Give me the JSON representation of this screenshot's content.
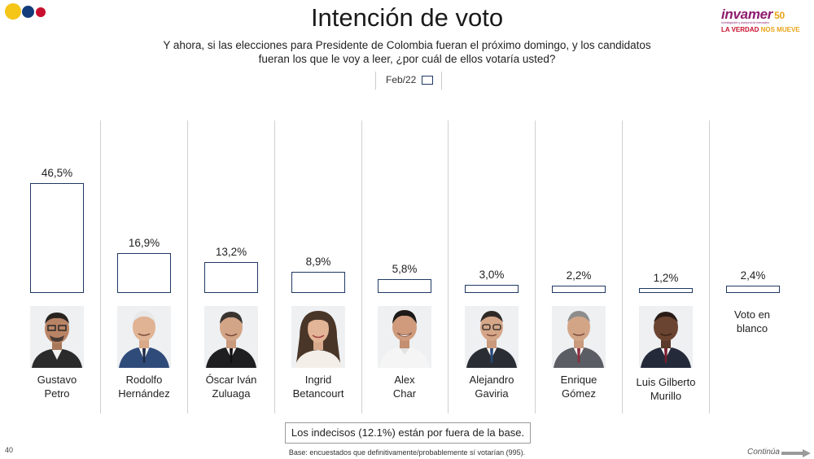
{
  "title": "Intención de voto",
  "question": "Y ahora, si las elecciones para Presidente de Colombia fueran el próximo domingo, y los candidatos fueran los que le voy a leer, ¿por cuál de ellos votaría usted?",
  "legend": {
    "label": "Feb/22"
  },
  "logo": {
    "brand": "invamer",
    "fifty": "50",
    "subtitle": "Investigación y asesoría de mercadeo",
    "tagline_a": "LA VERDAD",
    "tagline_b": "NOS MUEVE"
  },
  "chart_data": {
    "type": "bar",
    "categories": [
      "Gustavo Petro",
      "Rodolfo Hernández",
      "Óscar Iván Zuluaga",
      "Ingrid Betancourt",
      "Alex Char",
      "Alejandro Gaviria",
      "Enrique Gómez",
      "Luis Gilberto Murillo",
      "Voto en blanco"
    ],
    "series": [
      {
        "name": "Feb/22",
        "values": [
          46.5,
          16.9,
          13.2,
          8.9,
          5.8,
          3.0,
          2.2,
          1.2,
          2.4
        ]
      }
    ],
    "value_labels": [
      "46,5%",
      "16,9%",
      "13,2%",
      "8,9%",
      "5,8%",
      "3,0%",
      "2,2%",
      "1,2%",
      "2,4%"
    ],
    "name_lines": [
      [
        "Gustavo",
        "Petro"
      ],
      [
        "Rodolfo",
        "Hernández"
      ],
      [
        "Óscar Iván",
        "Zuluaga"
      ],
      [
        "Ingrid",
        "Betancourt"
      ],
      [
        "Alex",
        "Char"
      ],
      [
        "Alejandro",
        "Gaviria"
      ],
      [
        "Enrique",
        "Gómez"
      ],
      [
        "Luis Gilberto",
        "Murillo"
      ],
      [
        "Voto en",
        "blanco"
      ]
    ],
    "ylim": [
      0,
      50
    ],
    "bar_color": "#1f3864"
  },
  "note": "Los indecisos (12.1%) están por fuera de la base.",
  "base_text": "Base: encuestados que definitivamente/probablemente sí votarían (995).",
  "page_number": "40",
  "continue_label": "Continúa",
  "colors": {
    "yellow": "#f5c518",
    "blue": "#123d7a",
    "red": "#c8102e",
    "brand": "#8e1b6e"
  }
}
